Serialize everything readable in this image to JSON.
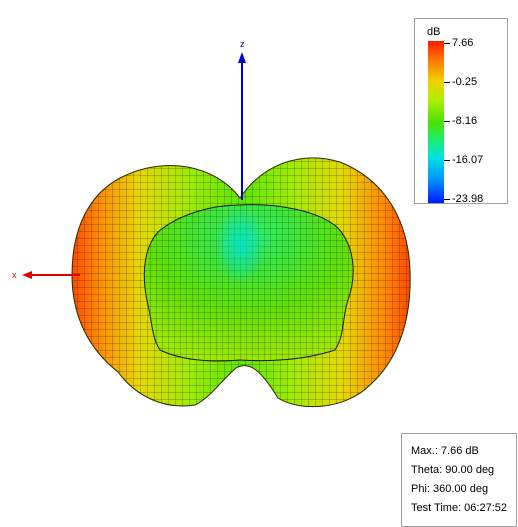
{
  "axes": {
    "z_label": "z",
    "x_label": "x"
  },
  "legend": {
    "unit": "dB",
    "ticks": [
      "7.66",
      "-0.25",
      "-8.16",
      "-16.07",
      "-23.98"
    ],
    "colors": {
      "high": "#ff1a00",
      "mid_high": "#f2d000",
      "mid": "#4ce000",
      "mid_low": "#00e0e0",
      "low": "#0018ff"
    }
  },
  "info": {
    "max": "Max.: 7.66 dB",
    "theta": "Theta: 90.00 deg",
    "phi": "Phi: 360.00 deg",
    "test_time": "Test Time: 06:27:52"
  },
  "colors": {
    "z_axis": "#0000cc",
    "x_axis": "#e00000",
    "mesh_line": "#141414"
  }
}
